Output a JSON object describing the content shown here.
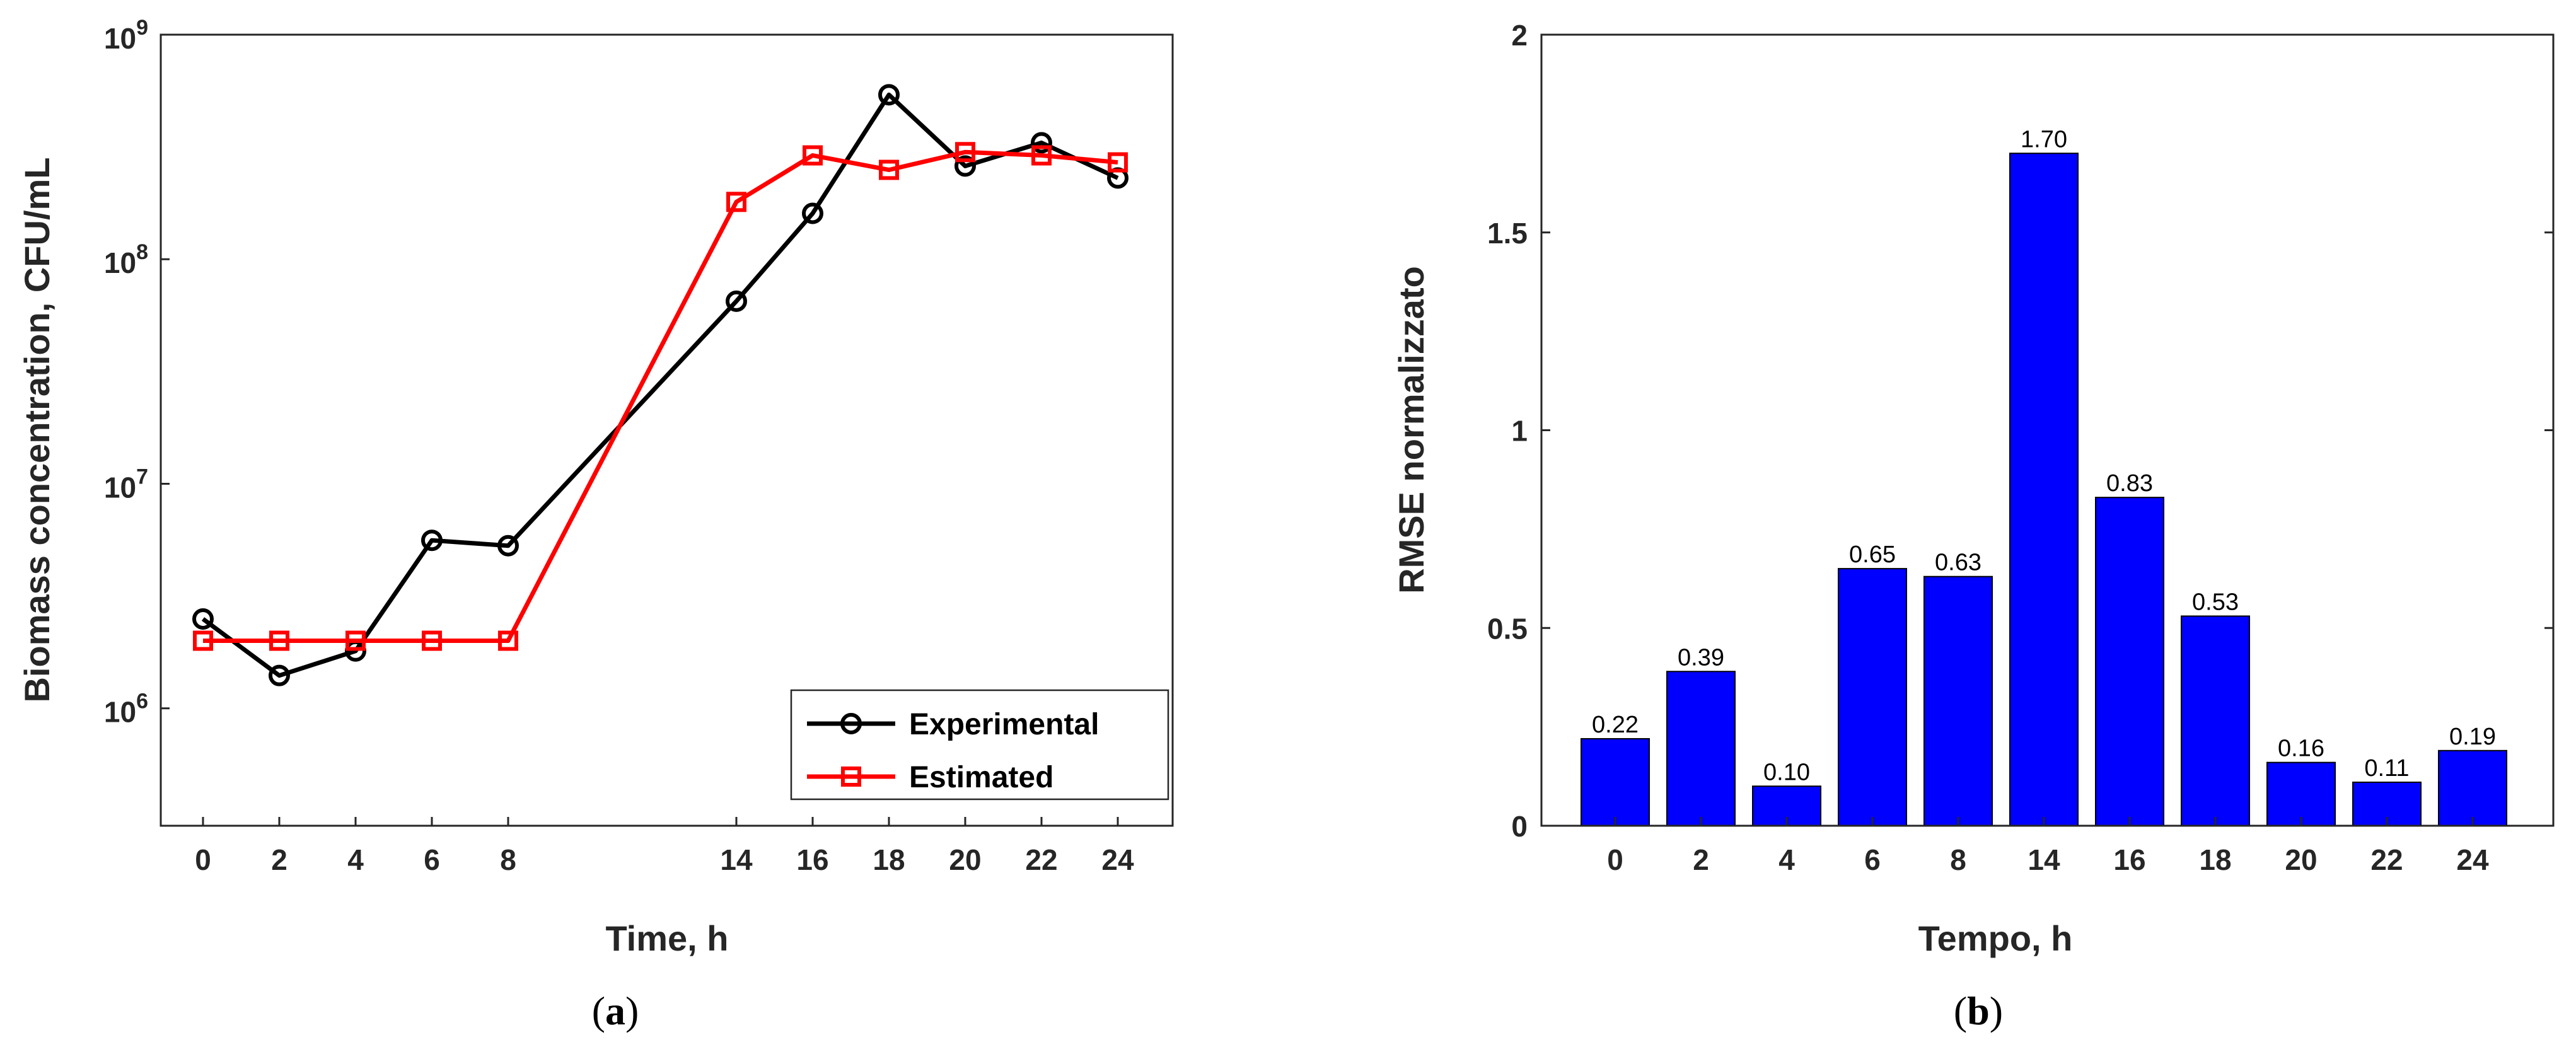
{
  "chart_data": [
    {
      "type": "line",
      "panel_caption": "a",
      "xlabel": "Time, h",
      "ylabel": "Biomass concentration, CFU/mL",
      "yscale": "log",
      "ylim": [
        300000,
        1000000000
      ],
      "xlim": [
        -1,
        25
      ],
      "x_ticks": [
        0,
        2,
        4,
        6,
        8,
        14,
        16,
        18,
        20,
        22,
        24
      ],
      "y_ticks": [
        {
          "value": 1000000,
          "base": "10",
          "exp": "6"
        },
        {
          "value": 10000000,
          "base": "10",
          "exp": "7"
        },
        {
          "value": 100000000,
          "base": "10",
          "exp": "8"
        },
        {
          "value": 1000000000,
          "base": "10",
          "exp": "9"
        }
      ],
      "legend_position": "bottom-right",
      "series": [
        {
          "name": "Experimental",
          "color": "#000000",
          "marker": "circle",
          "x": [
            0,
            2,
            4,
            6,
            8,
            14,
            16,
            18,
            20,
            22,
            24
          ],
          "values": [
            2500000,
            1400000,
            1800000,
            5600000,
            5300000,
            65000000,
            160000000,
            540000000,
            260000000,
            330000000,
            230000000
          ]
        },
        {
          "name": "Estimated",
          "color": "#ff0000",
          "marker": "square",
          "x": [
            0,
            2,
            4,
            6,
            8,
            14,
            16,
            18,
            20,
            22,
            24
          ],
          "values": [
            2000000,
            2000000,
            2000000,
            2000000,
            2000000,
            180000000,
            290000000,
            250000000,
            300000000,
            290000000,
            270000000
          ]
        }
      ]
    },
    {
      "type": "bar",
      "panel_caption": "b",
      "xlabel": "Tempo, h",
      "ylabel": "RMSE normalizzato",
      "ylim": [
        0,
        2
      ],
      "y_ticks": [
        "0",
        "0.5",
        "1",
        "1.5",
        "2"
      ],
      "bar_color": "#0000ff",
      "categories": [
        "0",
        "2",
        "4",
        "6",
        "8",
        "14",
        "16",
        "18",
        "20",
        "22",
        "24"
      ],
      "values": [
        0.22,
        0.39,
        0.1,
        0.65,
        0.63,
        1.7,
        0.83,
        0.53,
        0.16,
        0.11,
        0.19
      ],
      "value_labels": [
        "0.22",
        "0.39",
        "0.10",
        "0.65",
        "0.63",
        "1.70",
        "0.83",
        "0.53",
        "0.16",
        "0.11",
        "0.19"
      ]
    }
  ]
}
